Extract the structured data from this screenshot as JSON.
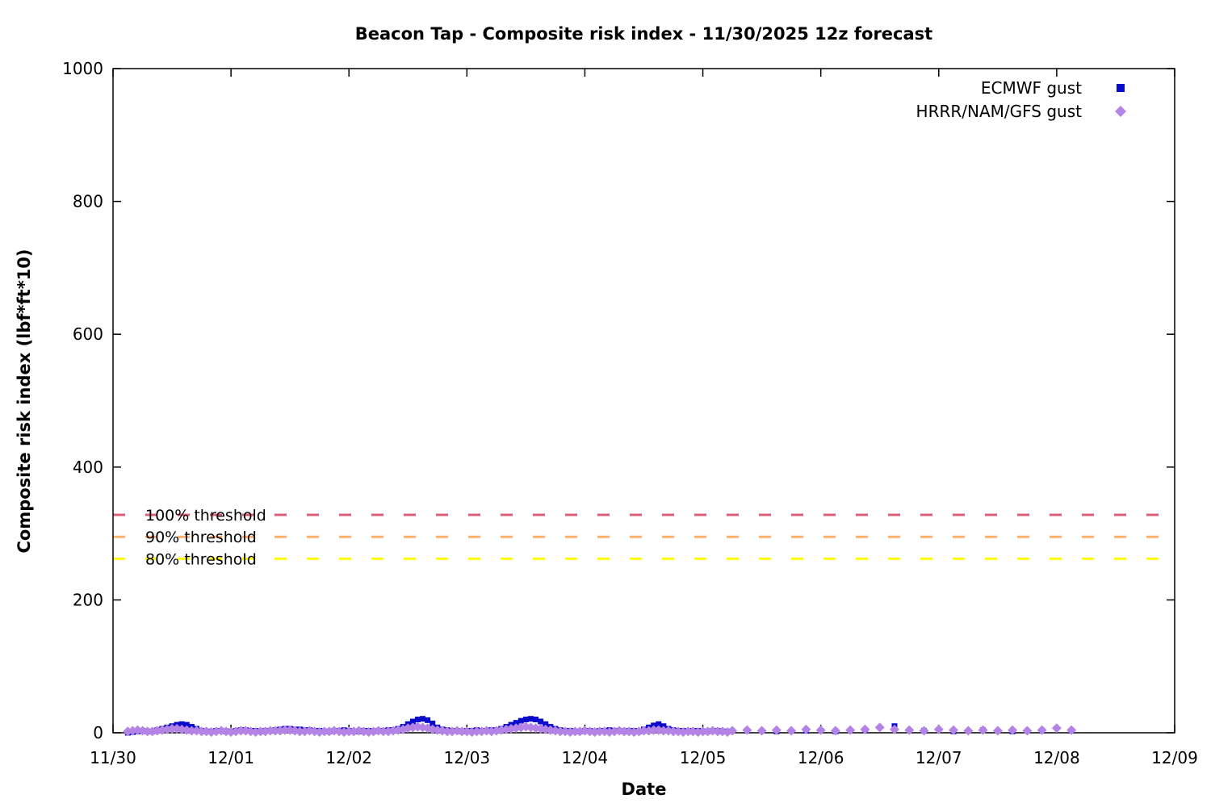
{
  "chart_data": {
    "type": "scatter",
    "title": "Beacon Tap - Composite risk index - 11/30/2025 12z forecast",
    "xlabel": "Date",
    "ylabel": "Composite risk index (lbf*ft*10)",
    "grid": "off",
    "legend_position": "top-right-inside",
    "x_axis": {
      "tick_labels": [
        "11/30",
        "12/01",
        "12/02",
        "12/03",
        "12/04",
        "12/05",
        "12/06",
        "12/07",
        "12/08",
        "12/09"
      ],
      "tick_hours": [
        0,
        24,
        48,
        72,
        96,
        120,
        144,
        168,
        192,
        216
      ],
      "range_hours": [
        0,
        216
      ],
      "x_unit": "hours since 11/30 00:00"
    },
    "y_axis": {
      "tick_values": [
        0,
        200,
        400,
        600,
        800,
        1000
      ],
      "range": [
        0,
        1000
      ]
    },
    "thresholds": [
      {
        "label": "100% threshold",
        "value": 328,
        "color": "#d96078"
      },
      {
        "label": "90% threshold",
        "value": 295,
        "color": "#ffb26b"
      },
      {
        "label": "80% threshold",
        "value": 262,
        "color": "#ffff00"
      }
    ],
    "series": [
      {
        "name": "ECMWF gust",
        "marker": "square",
        "color": "#0a0acc",
        "segments": [
          {
            "start_hour": 3,
            "step_hours": 1,
            "values": [
              0,
              1,
              2,
              3,
              2,
              2,
              4,
              6,
              8,
              10,
              12,
              13,
              12,
              9,
              6,
              3,
              2,
              2,
              3,
              3,
              2,
              2,
              3,
              4,
              4,
              3,
              3,
              2,
              3,
              3,
              4,
              5,
              6,
              6,
              5,
              5,
              4,
              4,
              3,
              3,
              2,
              2,
              3,
              3,
              4,
              3,
              2,
              2,
              3,
              3,
              2,
              3,
              3,
              4,
              4,
              6,
              9,
              13,
              17,
              20,
              21,
              19,
              14,
              8,
              5,
              4,
              3,
              3,
              2,
              3,
              3,
              4,
              3,
              3,
              4,
              4,
              6,
              9,
              12,
              15,
              18,
              20,
              21,
              20,
              17,
              13,
              9,
              6,
              4,
              3,
              3,
              2,
              2,
              3,
              3,
              2,
              3,
              3,
              4,
              3,
              3,
              2,
              3,
              3,
              2,
              5,
              8,
              11,
              13,
              10,
              6,
              4,
              3,
              3,
              2,
              3,
              3,
              2,
              2,
              3,
              3,
              2,
              2
            ]
          },
          {
            "start_hour": 129,
            "step_hours": 6,
            "values": [
              3,
              2,
              3,
              2,
              4,
              10,
              3,
              2,
              4,
              2,
              3,
              3
            ]
          }
        ]
      },
      {
        "name": "HRRR/NAM/GFS gust",
        "marker": "diamond",
        "color": "#b483e6",
        "segments": [
          {
            "start_hour": 3,
            "step_hours": 1,
            "values": [
              2,
              3,
              4,
              3,
              2,
              2,
              3,
              4,
              5,
              6,
              6,
              5,
              4,
              3,
              3,
              2,
              2,
              1,
              2,
              3,
              2,
              1,
              2,
              3,
              3,
              2,
              1,
              2,
              2,
              3,
              3,
              3,
              4,
              4,
              3,
              2,
              2,
              3,
              2,
              1,
              2,
              2,
              3,
              2,
              1,
              2,
              2,
              3,
              2,
              1,
              2,
              3,
              2,
              2,
              3,
              4,
              5,
              7,
              8,
              9,
              8,
              7,
              5,
              4,
              3,
              2,
              2,
              3,
              2,
              2,
              1,
              2,
              2,
              3,
              2,
              3,
              4,
              5,
              6,
              7,
              8,
              9,
              8,
              7,
              6,
              5,
              4,
              3,
              2,
              2,
              1,
              2,
              2,
              3,
              2,
              1,
              2,
              2,
              1,
              2,
              3,
              2,
              2,
              1,
              2,
              3,
              3,
              4,
              4,
              3,
              3,
              2,
              2,
              1,
              2,
              2,
              1,
              2,
              2,
              3,
              2,
              2,
              1
            ]
          },
          {
            "start_hour": 126,
            "step_hours": 3,
            "values": [
              3,
              4,
              3,
              4,
              3,
              5,
              4,
              3,
              4,
              5,
              8,
              5,
              4,
              3,
              5,
              4,
              3,
              4,
              3,
              4,
              3,
              4,
              7,
              4
            ]
          }
        ]
      }
    ]
  }
}
